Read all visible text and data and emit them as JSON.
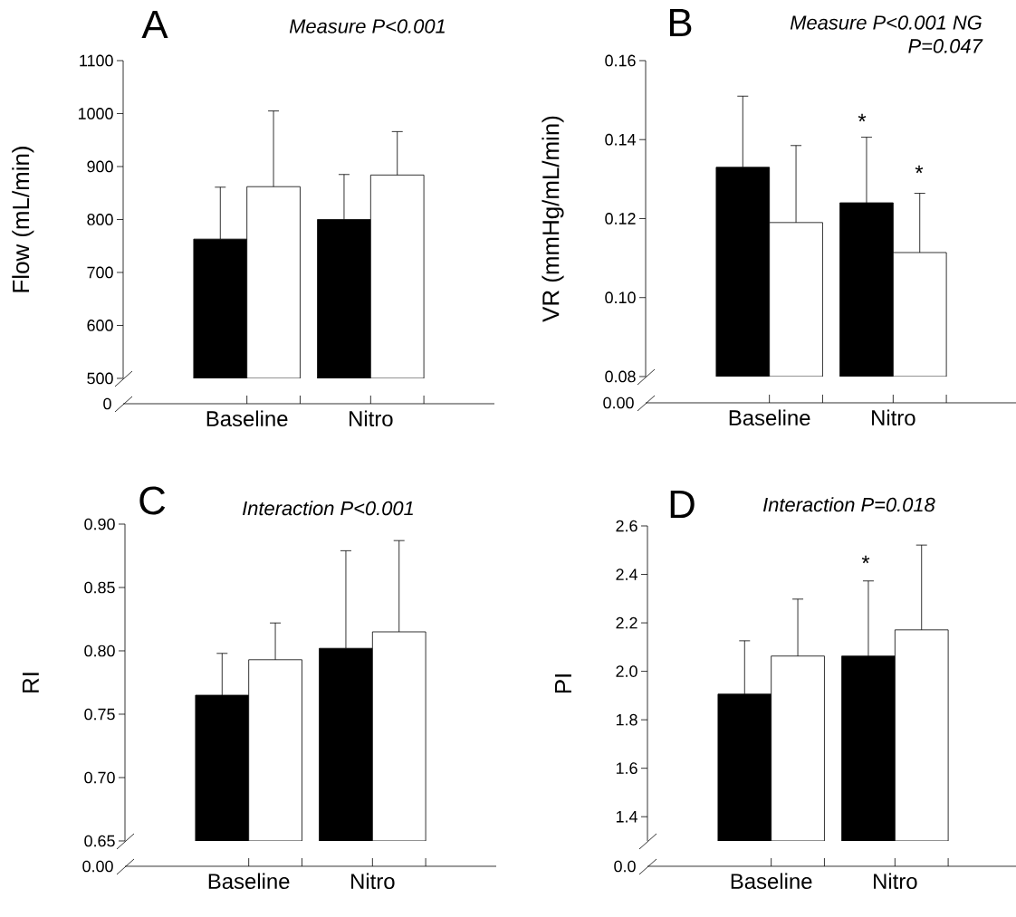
{
  "chart_data": [
    {
      "type": "bar",
      "title": "A",
      "subtitle": "Measure P<0.001",
      "ylabel": "Flow (mL/min)",
      "categories": [
        "Baseline",
        "Nitro"
      ],
      "series": [
        {
          "color": "#000000",
          "values": [
            763,
            800
          ],
          "errors": [
            [
              763,
              861
            ],
            [
              800,
              885
            ]
          ]
        },
        {
          "color": "#ffffff",
          "values": [
            862,
            884
          ],
          "errors": [
            [
              862,
              1005
            ],
            [
              884,
              966
            ]
          ]
        }
      ],
      "ylim": [
        500,
        1100
      ],
      "yticks": [
        500,
        600,
        700,
        800,
        900,
        1000,
        1100
      ],
      "annotations": [
        "0"
      ]
    },
    {
      "type": "bar",
      "title": "B",
      "subtitle": "Measure P<0.001 NG P=0.047",
      "ylabel": "VR (mmHg/mL/min)",
      "categories": [
        "Baseline",
        "Nitro"
      ],
      "series": [
        {
          "color": "#000000",
          "values": [
            0.133,
            0.124
          ],
          "errors": [
            [
              0.133,
              0.151
            ],
            [
              0.124,
              0.1406
            ]
          ]
        },
        {
          "color": "#ffffff",
          "values": [
            0.119,
            0.1114
          ],
          "errors": [
            [
              0.119,
              0.1385
            ],
            [
              0.1114,
              0.1264
            ]
          ]
        }
      ],
      "ylim": [
        0.08,
        0.16
      ],
      "yticks": [
        0.08,
        {
          "value": 0.1,
          "label": "0.10"
        },
        0.12,
        0.14,
        0.16
      ],
      "annotations": [
        "0.00",
        "*",
        "*"
      ]
    },
    {
      "type": "bar",
      "title": "C",
      "subtitle": "Interaction P<0.001",
      "ylabel": "RI",
      "categories": [
        "Baseline",
        "Nitro"
      ],
      "series": [
        {
          "color": "#000000",
          "values": [
            0.765,
            0.802
          ],
          "errors": [
            [
              0.765,
              0.798
            ],
            [
              0.802,
              0.879
            ]
          ]
        },
        {
          "color": "#ffffff",
          "values": [
            0.793,
            0.815
          ],
          "errors": [
            [
              0.793,
              0.822
            ],
            [
              0.815,
              0.887
            ]
          ]
        }
      ],
      "ylim": [
        0.65,
        0.9
      ],
      "yticks": [
        0.65,
        {
          "value": 0.7,
          "label": "0.70"
        },
        0.75,
        {
          "value": 0.8,
          "label": "0.80"
        },
        0.85,
        {
          "value": 0.9,
          "label": "0.90"
        }
      ],
      "annotations": [
        "0.00"
      ]
    },
    {
      "type": "bar",
      "title": "D",
      "subtitle": "Interaction P=0.018",
      "ylabel": "PI",
      "categories": [
        "Baseline",
        "Nitro"
      ],
      "series": [
        {
          "color": "#000000",
          "values": [
            1.906,
            2.063
          ],
          "errors": [
            [
              1.906,
              2.126
            ],
            [
              2.063,
              2.373
            ]
          ]
        },
        {
          "color": "#ffffff",
          "values": [
            2.063,
            2.171
          ],
          "errors": [
            [
              2.063,
              2.298
            ],
            [
              2.171,
              2.521
            ]
          ]
        }
      ],
      "ylim": [
        1.3,
        2.6
      ],
      "yticks": [
        1.4,
        1.6,
        1.8,
        {
          "value": 2,
          "label": "2.0"
        },
        2.2,
        2.4,
        2.6
      ],
      "annotations": [
        "0.0",
        "*"
      ]
    }
  ]
}
